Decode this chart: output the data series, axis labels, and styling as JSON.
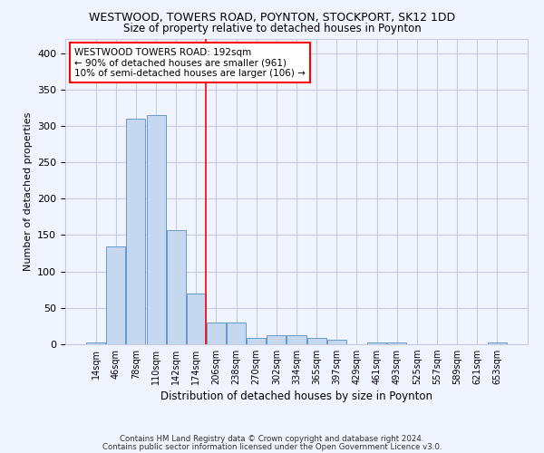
{
  "title1": "WESTWOOD, TOWERS ROAD, POYNTON, STOCKPORT, SK12 1DD",
  "title2": "Size of property relative to detached houses in Poynton",
  "xlabel": "Distribution of detached houses by size in Poynton",
  "ylabel": "Number of detached properties",
  "categories": [
    "14sqm",
    "46sqm",
    "78sqm",
    "110sqm",
    "142sqm",
    "174sqm",
    "206sqm",
    "238sqm",
    "270sqm",
    "302sqm",
    "334sqm",
    "365sqm",
    "397sqm",
    "429sqm",
    "461sqm",
    "493sqm",
    "525sqm",
    "557sqm",
    "589sqm",
    "621sqm",
    "653sqm"
  ],
  "values": [
    3,
    135,
    310,
    315,
    157,
    70,
    30,
    30,
    9,
    12,
    12,
    9,
    6,
    0,
    3,
    3,
    0,
    0,
    0,
    0,
    2
  ],
  "bar_color": "#c5d8f0",
  "bar_edge_color": "#6699cc",
  "annotation_line1": "WESTWOOD TOWERS ROAD: 192sqm",
  "annotation_line2": "← 90% of detached houses are smaller (961)",
  "annotation_line3": "10% of semi-detached houses are larger (106) →",
  "footer1": "Contains HM Land Registry data © Crown copyright and database right 2024.",
  "footer2": "Contains public sector information licensed under the Open Government Licence v3.0.",
  "ylim_max": 420,
  "yticks": [
    0,
    50,
    100,
    150,
    200,
    250,
    300,
    350,
    400
  ],
  "background_color": "#f0f4ff",
  "grid_color": "#c8cce0",
  "red_line_index": 5.5
}
